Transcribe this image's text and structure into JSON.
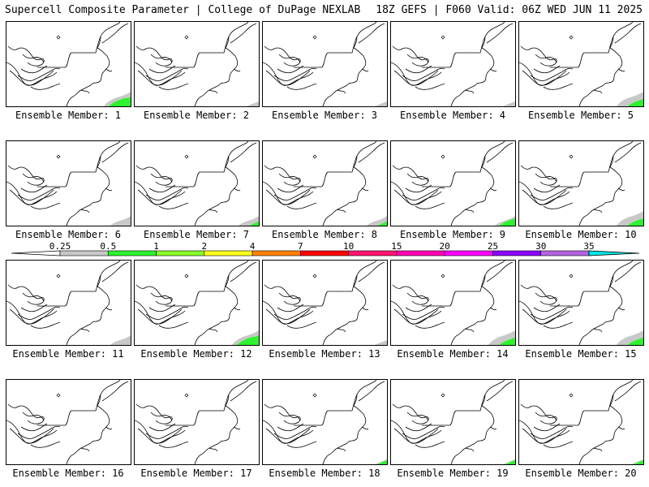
{
  "header": {
    "left": "Supercell Composite Parameter | College of DuPage NEXLAB",
    "right": "18Z GEFS | F060 Valid: 06Z WED JUN 11 2025"
  },
  "panels": [
    {
      "label": "Ensemble Member: 1",
      "member": 1,
      "gray": "large",
      "green": "large"
    },
    {
      "label": "Ensemble Member: 2",
      "member": 2,
      "gray": "small",
      "green": "none"
    },
    {
      "label": "Ensemble Member: 3",
      "member": 3,
      "gray": "small",
      "green": "none"
    },
    {
      "label": "Ensemble Member: 4",
      "member": 4,
      "gray": "small",
      "green": "none"
    },
    {
      "label": "Ensemble Member: 5",
      "member": 5,
      "gray": "large",
      "green": "medium"
    },
    {
      "label": "Ensemble Member: 6",
      "member": 6,
      "gray": "medium",
      "green": "none"
    },
    {
      "label": "Ensemble Member: 7",
      "member": 7,
      "gray": "medium",
      "green": "small"
    },
    {
      "label": "Ensemble Member: 8",
      "member": 8,
      "gray": "medium",
      "green": "small"
    },
    {
      "label": "Ensemble Member: 9",
      "member": 9,
      "gray": "medium",
      "green": "medium"
    },
    {
      "label": "Ensemble Member: 10",
      "member": 10,
      "gray": "large",
      "green": "medium"
    },
    {
      "label": "Ensemble Member: 11",
      "member": 11,
      "gray": "medium",
      "green": "none"
    },
    {
      "label": "Ensemble Member: 12",
      "member": 12,
      "gray": "large",
      "green": "large"
    },
    {
      "label": "Ensemble Member: 13",
      "member": 13,
      "gray": "small",
      "green": "none"
    },
    {
      "label": "Ensemble Member: 14",
      "member": 14,
      "gray": "large",
      "green": "medium"
    },
    {
      "label": "Ensemble Member: 15",
      "member": 15,
      "gray": "large",
      "green": "medium"
    },
    {
      "label": "Ensemble Member: 16",
      "member": 16,
      "gray": "none",
      "green": "none"
    },
    {
      "label": "Ensemble Member: 17",
      "member": 17,
      "gray": "none",
      "green": "none"
    },
    {
      "label": "Ensemble Member: 18",
      "member": 18,
      "gray": "small",
      "green": "small"
    },
    {
      "label": "Ensemble Member: 19",
      "member": 19,
      "gray": "small",
      "green": "small"
    },
    {
      "label": "Ensemble Member: 20",
      "member": 20,
      "gray": "small",
      "green": "small"
    }
  ],
  "colorbar": {
    "ticks": [
      "0.25",
      "0.5",
      "1",
      "2",
      "4",
      "7",
      "10",
      "15",
      "20",
      "25",
      "30",
      "35"
    ],
    "colors": [
      "#c8c8c8",
      "#2ef22e",
      "#8aff2a",
      "#ffff1e",
      "#ff8000",
      "#ff0000",
      "#ff1470",
      "#ff00b4",
      "#ff00ff",
      "#8a00ff",
      "#b464e0",
      "#00e6e6"
    ],
    "low_end_color": "#ffffff"
  },
  "colors": {
    "coastline": "#000000",
    "spc_low": "#c8c8c8",
    "spc_1": "#2ef22e"
  }
}
